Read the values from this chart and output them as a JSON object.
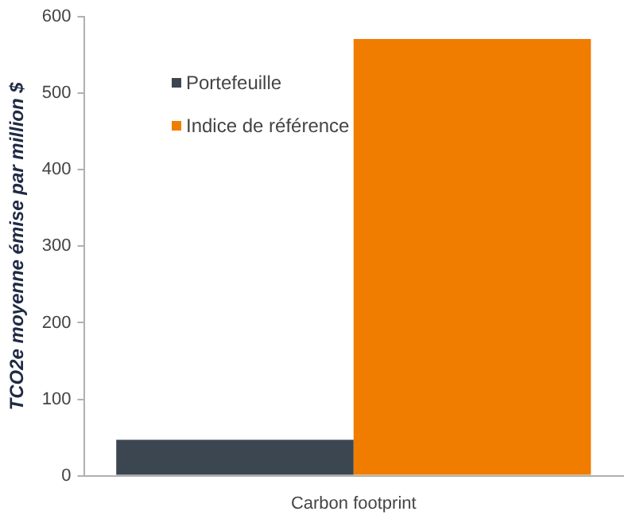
{
  "chart_data": {
    "type": "bar",
    "ylabel": "TCO2e moyenne émise par million $",
    "categories": [
      "Carbon footprint"
    ],
    "series": [
      {
        "name": "Portefeuille",
        "color": "#3b4651",
        "values": [
          47
        ]
      },
      {
        "name": "Indice de référence",
        "color": "#f07c00",
        "values": [
          571
        ]
      }
    ],
    "ylim": [
      0,
      600
    ],
    "yticks": [
      0,
      100,
      200,
      300,
      400,
      500,
      600
    ],
    "grid": false,
    "legend": "top left"
  }
}
